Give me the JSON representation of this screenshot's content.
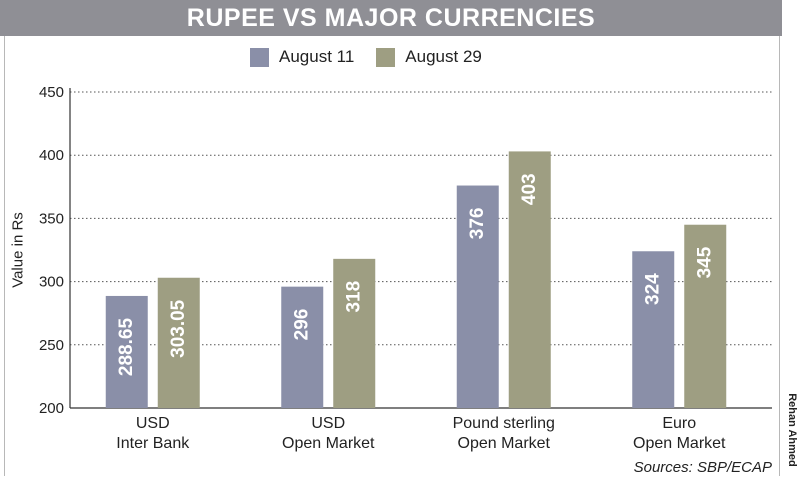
{
  "header": {
    "title": "RUPEE VS MAJOR CURRENCIES"
  },
  "chart_data": {
    "type": "bar",
    "title": "RUPEE VS MAJOR CURRENCIES",
    "xlabel": "",
    "ylabel": "Value in Rs",
    "ylim": [
      200,
      450
    ],
    "yticks": [
      200,
      250,
      300,
      350,
      400,
      450
    ],
    "grid": true,
    "legend_position": "top-center",
    "categories": [
      [
        "USD",
        "Inter Bank"
      ],
      [
        "USD",
        "Open Market"
      ],
      [
        "Pound sterling",
        "Open Market"
      ],
      [
        "Euro",
        "Open Market"
      ]
    ],
    "series": [
      {
        "name": "August 11",
        "color": "#8a8fa8",
        "values": [
          288.65,
          296,
          376,
          324
        ],
        "labels": [
          "288.65",
          "296",
          "376",
          "324"
        ]
      },
      {
        "name": "August 29",
        "color": "#9e9e82",
        "values": [
          303.05,
          318,
          403,
          345
        ],
        "labels": [
          "303.05",
          "318",
          "403",
          "345"
        ]
      }
    ]
  },
  "footer": {
    "source": "Sources: SBP/ECAP",
    "credit": "Rehan Ahmed"
  }
}
